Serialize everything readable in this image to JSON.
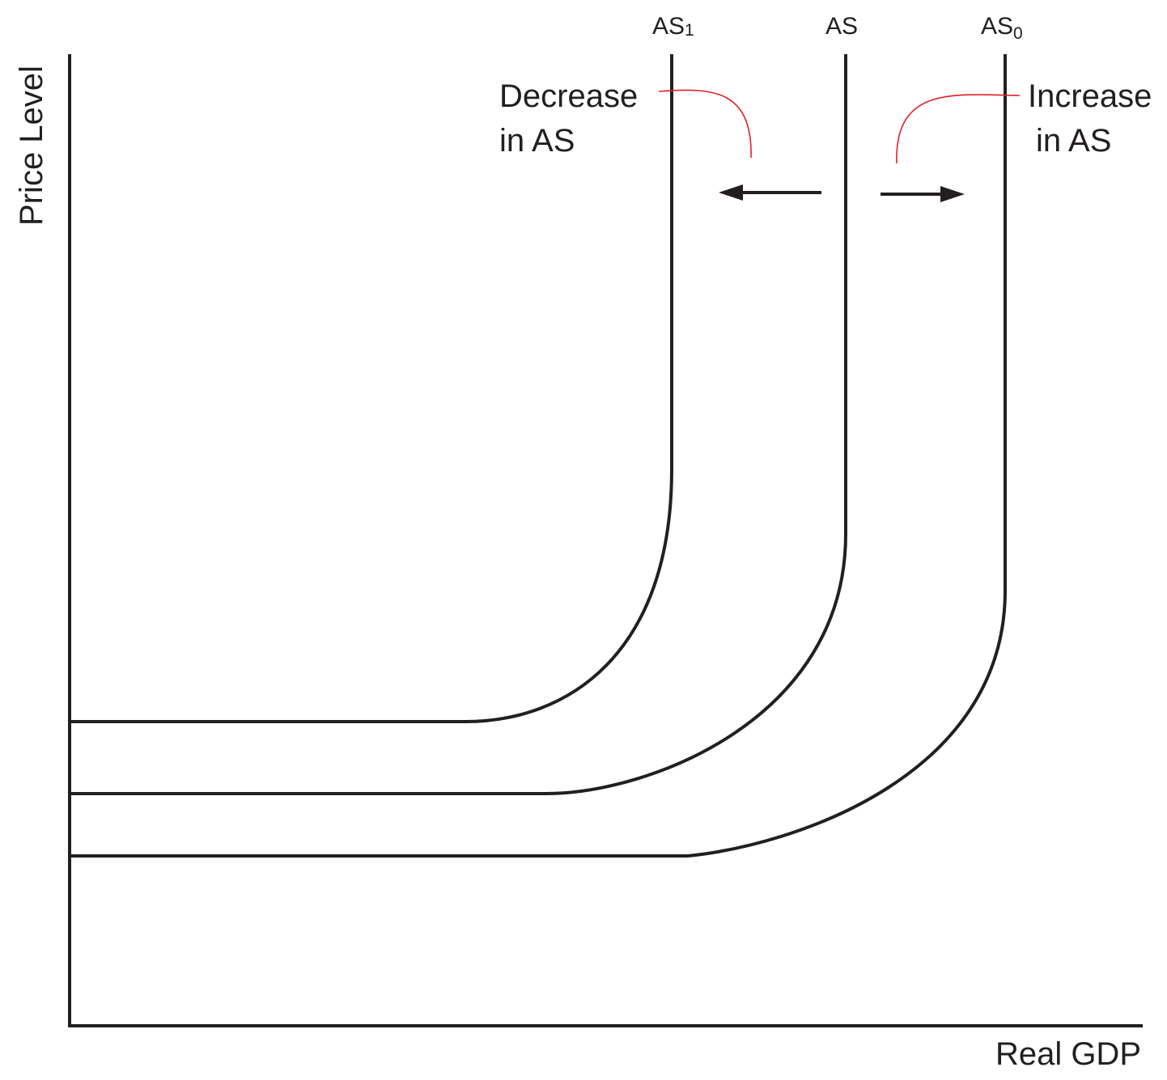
{
  "diagram": {
    "axes": {
      "y_label": "Price Level",
      "x_label": "Real GDP"
    },
    "curves": [
      {
        "id": "as1",
        "label": "AS",
        "subscript": "1"
      },
      {
        "id": "as",
        "label": "AS",
        "subscript": ""
      },
      {
        "id": "as0",
        "label": "AS",
        "subscript": "0"
      }
    ],
    "annotations": {
      "decrease": {
        "line1": "Decrease",
        "line2": "in AS"
      },
      "increase": {
        "line1": "Increase",
        "line2": "in AS"
      }
    },
    "colors": {
      "lines": "#231f20",
      "leaders": "#e0202a"
    }
  }
}
